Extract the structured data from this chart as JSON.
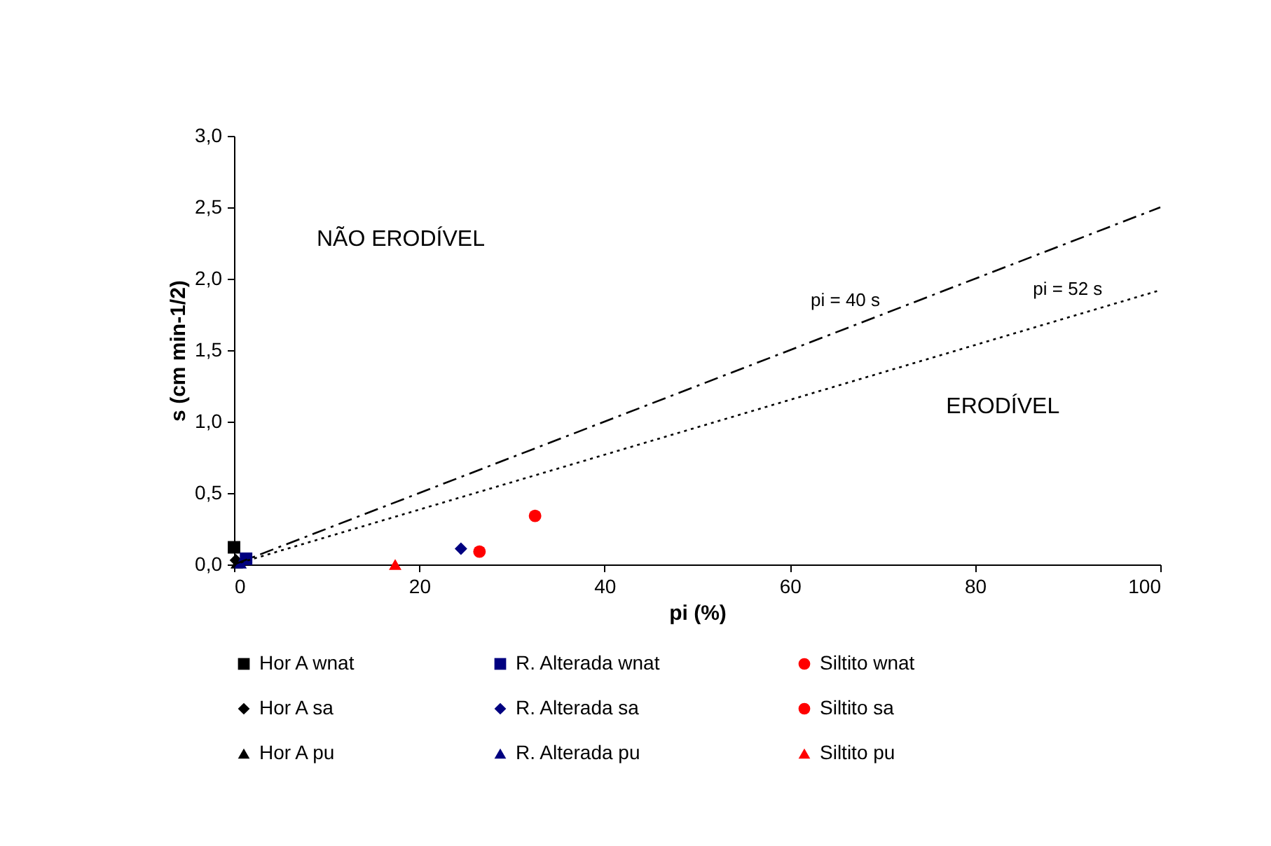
{
  "chart_data": {
    "type": "scatter",
    "xlabel": "pi (%)",
    "ylabel": "s (cm min-1/2)",
    "xlim": [
      0,
      100
    ],
    "ylim": [
      0,
      3
    ],
    "xticks": [
      0,
      20,
      40,
      60,
      80,
      100
    ],
    "yticks": [
      {
        "value": 0,
        "label": "0,0"
      },
      {
        "value": 0.5,
        "label": "0,5"
      },
      {
        "value": 1,
        "label": "1,0"
      },
      {
        "value": 1.5,
        "label": "1,5"
      },
      {
        "value": 2,
        "label": "2,0"
      },
      {
        "value": 2.5,
        "label": "2,5"
      },
      {
        "value": 3,
        "label": "3,0"
      }
    ],
    "grid": false,
    "legend": "bottom",
    "series": [
      {
        "name": "Hor A wnat",
        "color": "#000000",
        "marker": "square",
        "x": [
          0
        ],
        "values": [
          0.12
        ]
      },
      {
        "name": "Hor A sa",
        "color": "#000000",
        "marker": "diamond",
        "x": [
          0.2
        ],
        "values": [
          0.03
        ]
      },
      {
        "name": "Hor A pu",
        "color": "#000000",
        "marker": "triangle",
        "x": [
          0.3
        ],
        "values": [
          0.01
        ]
      },
      {
        "name": "R. Alterada wnat",
        "color": "#000080",
        "marker": "square",
        "x": [
          1.3
        ],
        "values": [
          0.04
        ]
      },
      {
        "name": "R. Alterada sa",
        "color": "#000080",
        "marker": "diamond",
        "x": [
          24.5
        ],
        "values": [
          0.11
        ]
      },
      {
        "name": "R. Alterada pu",
        "color": "#000080",
        "marker": "triangle",
        "x": [
          0.7
        ],
        "values": [
          0.01
        ]
      },
      {
        "name": "Siltito wnat",
        "color": "#ff0000",
        "marker": "circle",
        "x": [
          26.5
        ],
        "values": [
          0.09
        ]
      },
      {
        "name": "Siltito sa",
        "color": "#ff0000",
        "marker": "circle",
        "x": [
          32.5
        ],
        "values": [
          0.34
        ]
      },
      {
        "name": "Siltito pu",
        "color": "#ff0000",
        "marker": "triangle",
        "x": [
          17.4
        ],
        "values": [
          0
        ]
      },
      {
        "name": "pi = 40 s",
        "type": "line",
        "color": "#000000",
        "line_style": "dashed",
        "x": [
          0,
          100
        ],
        "values": [
          0,
          2.5
        ]
      },
      {
        "name": "pi = 52 s",
        "type": "line",
        "color": "#000000",
        "line_style": "dotted",
        "x": [
          0,
          100
        ],
        "values": [
          0,
          1.92
        ]
      }
    ],
    "annotations": [
      "NÃO ERODÍVEL",
      "ERODÍVEL"
    ]
  }
}
